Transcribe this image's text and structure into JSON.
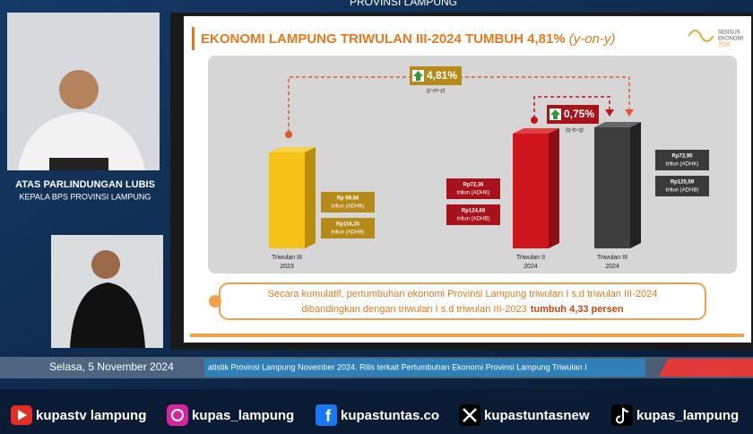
{
  "header": {
    "banner": "PROVINSI LAMPUNG"
  },
  "speaker": {
    "name": "ATAS PARLINDUNGAN LUBIS",
    "role": "KEPALA BPS PROVINSI LAMPUNG"
  },
  "slide": {
    "title": "EKONOMI LAMPUNG TRIWULAN III-2024 TUMBUH 4,81%",
    "title_suffix": "(y-on-y)",
    "logo": [
      "SENSUS",
      "EKONOMI",
      "2026"
    ],
    "yoy": {
      "value": "4,81%",
      "label": "(y-on-y)"
    },
    "qtq": {
      "value": "0,75%",
      "label": "(q-to-q)"
    },
    "bars": [
      {
        "label": [
          "Triwulan III",
          "2023"
        ],
        "adhk": [
          "Rp 69,56",
          "triliun (ADHK)"
        ],
        "adhb": [
          "Rp116,25",
          "triliun (ADHB)"
        ]
      },
      {
        "label": [
          "Triwulan II",
          "2024"
        ],
        "adhk": [
          "Rp72,36",
          "triliun (ADHK)"
        ],
        "adhb": [
          "Rp124,68",
          "triliun (ADHB)"
        ]
      },
      {
        "label": [
          "Triwulan III",
          "2024"
        ],
        "adhk": [
          "Rp72,90",
          "triliun (ADHK)"
        ],
        "adhb": [
          "Rp125,59",
          "triliun (ADHB)"
        ]
      }
    ],
    "summary": {
      "line1": "Secara kumulatif, pertumbuhan ekonomi Provinsi Lampung triwulan I s.d triwulan III-2024",
      "line2": "dibandingkan dengan triwulan I s.d triwulan III-2023",
      "emphasis": "tumbuh 4,33 persen"
    }
  },
  "ticker": {
    "date": "Selasa, 5 November 2024",
    "text": "atistik Provinsi Lampung November 2024. Rilis terkait Pertumbuhan Ekonomi Provinsi Lampung Triwulan I"
  },
  "socials": [
    "kupastv lampung",
    "kupas_lampung",
    "kupastuntas.co",
    "kupastuntasnew",
    "kupas_lampung"
  ]
}
